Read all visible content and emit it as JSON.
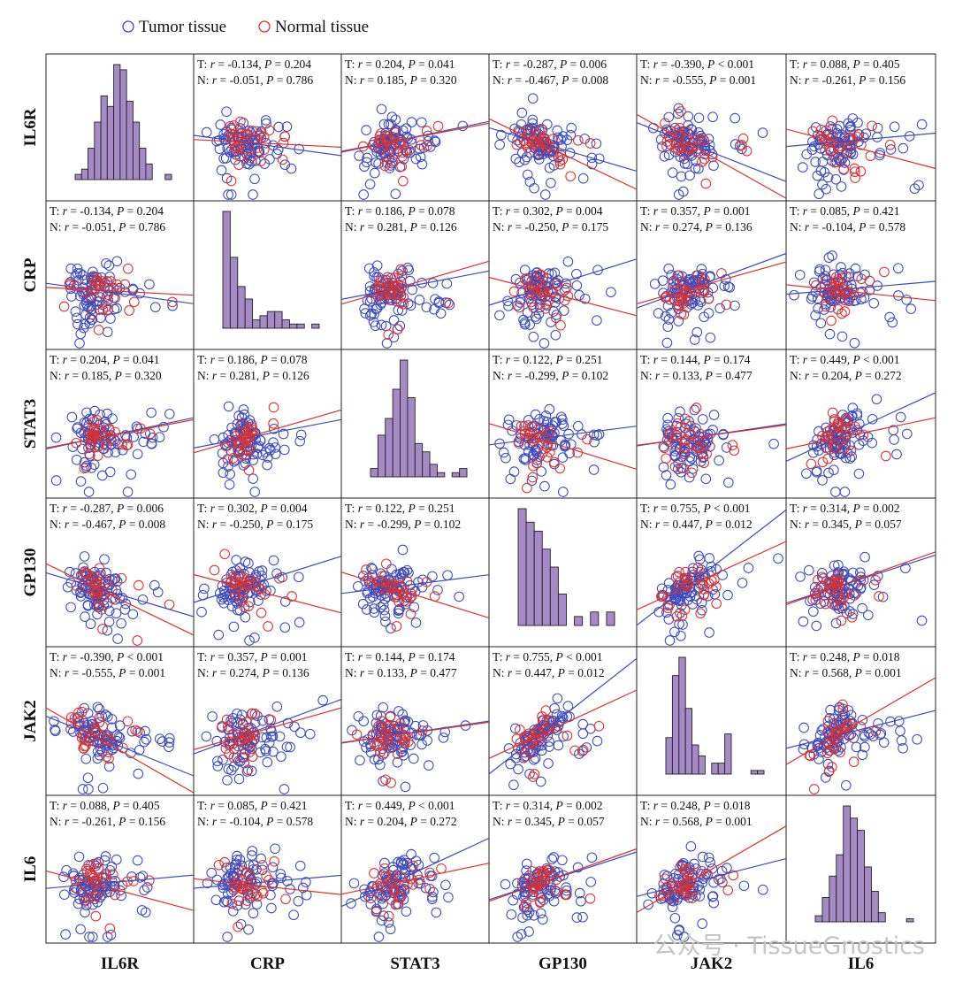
{
  "legend": {
    "items": [
      {
        "label": "Tumor tissue",
        "color": "#3b4cc0"
      },
      {
        "label": "Normal tissue",
        "color": "#e0302a"
      }
    ],
    "placement": "top-left"
  },
  "watermark": "公众号 · TissueGnostics",
  "chart_data": {
    "type": "scatter",
    "layout": "scatterplot-matrix",
    "variables": [
      "IL6R",
      "CRP",
      "STAT3",
      "GP130",
      "JAK2",
      "IL6"
    ],
    "series_colors": {
      "tumor": "#3b4cc0",
      "normal": "#e0302a"
    },
    "diagonal": "histogram",
    "histogram_color": "#a58ac6",
    "histograms": {
      "IL6R": [
        1,
        2,
        6,
        11,
        16,
        14,
        22,
        21,
        15,
        11,
        6,
        3,
        0,
        0,
        1
      ],
      "CRP": [
        28,
        17,
        10,
        7,
        2,
        3,
        4,
        4,
        2,
        1,
        1,
        0,
        1
      ],
      "STAT3": [
        2,
        10,
        14,
        21,
        28,
        19,
        8,
        6,
        3,
        1,
        0,
        1,
        2
      ],
      "GP130": [
        26,
        23,
        21,
        17,
        13,
        7,
        0,
        2,
        0,
        3,
        0,
        3
      ],
      "JAK2": [
        10,
        27,
        32,
        18,
        8,
        5,
        0,
        3,
        3,
        11,
        0,
        0,
        0,
        1,
        1
      ],
      "IL6": [
        2,
        8,
        15,
        22,
        38,
        34,
        30,
        18,
        10,
        3,
        0,
        0,
        0,
        1
      ]
    },
    "correlations": [
      {
        "x": "CRP",
        "y": "IL6R",
        "tumor": {
          "r": -0.134,
          "P": "0.204"
        },
        "normal": {
          "r": -0.051,
          "P": "0.786"
        }
      },
      {
        "x": "STAT3",
        "y": "IL6R",
        "tumor": {
          "r": 0.204,
          "P": "0.041"
        },
        "normal": {
          "r": 0.185,
          "P": "0.320"
        }
      },
      {
        "x": "GP130",
        "y": "IL6R",
        "tumor": {
          "r": -0.287,
          "P": "0.006"
        },
        "normal": {
          "r": -0.467,
          "P": "0.008"
        }
      },
      {
        "x": "JAK2",
        "y": "IL6R",
        "tumor": {
          "r": -0.39,
          "P": "< 0.001"
        },
        "normal": {
          "r": -0.555,
          "P": "0.001"
        }
      },
      {
        "x": "IL6",
        "y": "IL6R",
        "tumor": {
          "r": 0.088,
          "P": "0.405"
        },
        "normal": {
          "r": -0.261,
          "P": "0.156"
        }
      },
      {
        "x": "STAT3",
        "y": "CRP",
        "tumor": {
          "r": 0.186,
          "P": "0.078"
        },
        "normal": {
          "r": 0.281,
          "P": "0.126"
        }
      },
      {
        "x": "GP130",
        "y": "CRP",
        "tumor": {
          "r": 0.302,
          "P": "0.004"
        },
        "normal": {
          "r": -0.25,
          "P": "0.175"
        }
      },
      {
        "x": "JAK2",
        "y": "CRP",
        "tumor": {
          "r": 0.357,
          "P": "0.001"
        },
        "normal": {
          "r": 0.274,
          "P": "0.136"
        }
      },
      {
        "x": "IL6",
        "y": "CRP",
        "tumor": {
          "r": 0.085,
          "P": "0.421"
        },
        "normal": {
          "r": -0.104,
          "P": "0.578"
        }
      },
      {
        "x": "GP130",
        "y": "STAT3",
        "tumor": {
          "r": 0.122,
          "P": "0.251"
        },
        "normal": {
          "r": -0.299,
          "P": "0.102"
        }
      },
      {
        "x": "JAK2",
        "y": "STAT3",
        "tumor": {
          "r": 0.144,
          "P": "0.174"
        },
        "normal": {
          "r": 0.133,
          "P": "0.477"
        }
      },
      {
        "x": "IL6",
        "y": "STAT3",
        "tumor": {
          "r": 0.449,
          "P": "< 0.001"
        },
        "normal": {
          "r": 0.204,
          "P": "0.272"
        }
      },
      {
        "x": "JAK2",
        "y": "GP130",
        "tumor": {
          "r": 0.755,
          "P": "< 0.001"
        },
        "normal": {
          "r": 0.447,
          "P": "0.012"
        }
      },
      {
        "x": "IL6",
        "y": "GP130",
        "tumor": {
          "r": 0.314,
          "P": "0.002"
        },
        "normal": {
          "r": 0.345,
          "P": "0.057"
        }
      },
      {
        "x": "IL6",
        "y": "JAK2",
        "tumor": {
          "r": 0.248,
          "P": "0.018"
        },
        "normal": {
          "r": 0.568,
          "P": "0.001"
        }
      }
    ],
    "grid": false
  }
}
